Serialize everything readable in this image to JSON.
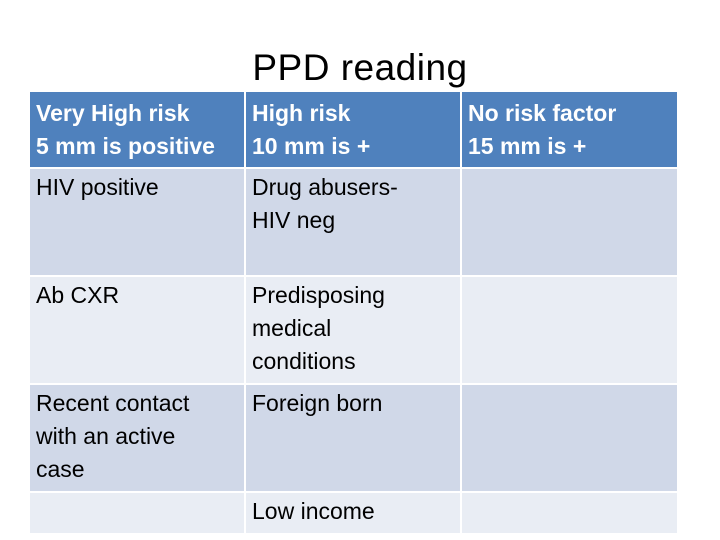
{
  "title": "PPD reading",
  "headers": [
    {
      "line1": "Very High risk",
      "line2": "5 mm is positive"
    },
    {
      "line1": "High risk",
      "line2": "10 mm is +"
    },
    {
      "line1": "No risk factor",
      "line2": "15 mm is +"
    }
  ],
  "rows": [
    {
      "col1": [
        "HIV positive"
      ],
      "col2": [
        "Drug abusers-",
        "HIV neg"
      ],
      "col3": []
    },
    {
      "col1": [
        "Ab CXR"
      ],
      "col2": [
        "Predisposing",
        "medical",
        "conditions"
      ],
      "col3": []
    },
    {
      "col1": [
        "Recent contact",
        "with an active",
        "case"
      ],
      "col2": [
        "Foreign born"
      ],
      "col3": []
    },
    {
      "col1": [],
      "col2": [
        "Low income"
      ],
      "col3": []
    }
  ],
  "colors": {
    "header_bg": "#4f81bd",
    "header_text": "#ffffff",
    "row_dark": "#d0d8e8",
    "row_light": "#e9edf4"
  }
}
